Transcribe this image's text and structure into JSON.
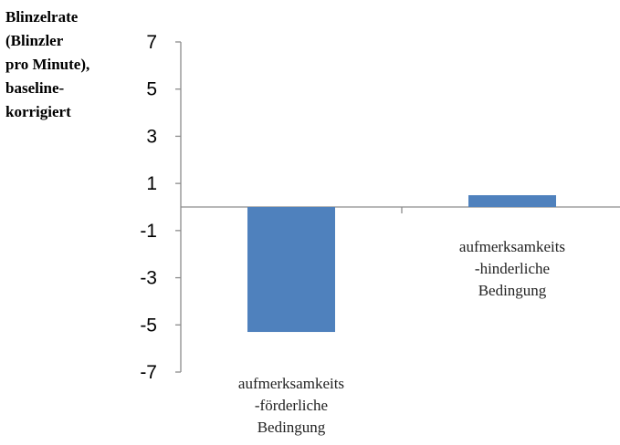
{
  "chart_data": {
    "type": "bar",
    "ylabel_lines": [
      "Blinzelrate",
      "(Blinzler",
      "pro Minute),",
      "baseline-",
      "korrigiert"
    ],
    "categories": [
      {
        "lines": [
          "aufmerksamkeits",
          "-förderliche",
          "Bedingung"
        ],
        "label_side": "below"
      },
      {
        "lines": [
          "aufmerksamkeits",
          "-hinderliche",
          "Bedingung"
        ],
        "label_side": "above"
      }
    ],
    "values": [
      -5.3,
      0.5
    ],
    "ylim": [
      -7,
      7
    ],
    "yticks": [
      7,
      5,
      3,
      1,
      -1,
      -3,
      -5,
      -7
    ],
    "bar_color": "#4f81bd",
    "axis_color": "#8c8c8c",
    "grid": false,
    "legend": "none"
  }
}
